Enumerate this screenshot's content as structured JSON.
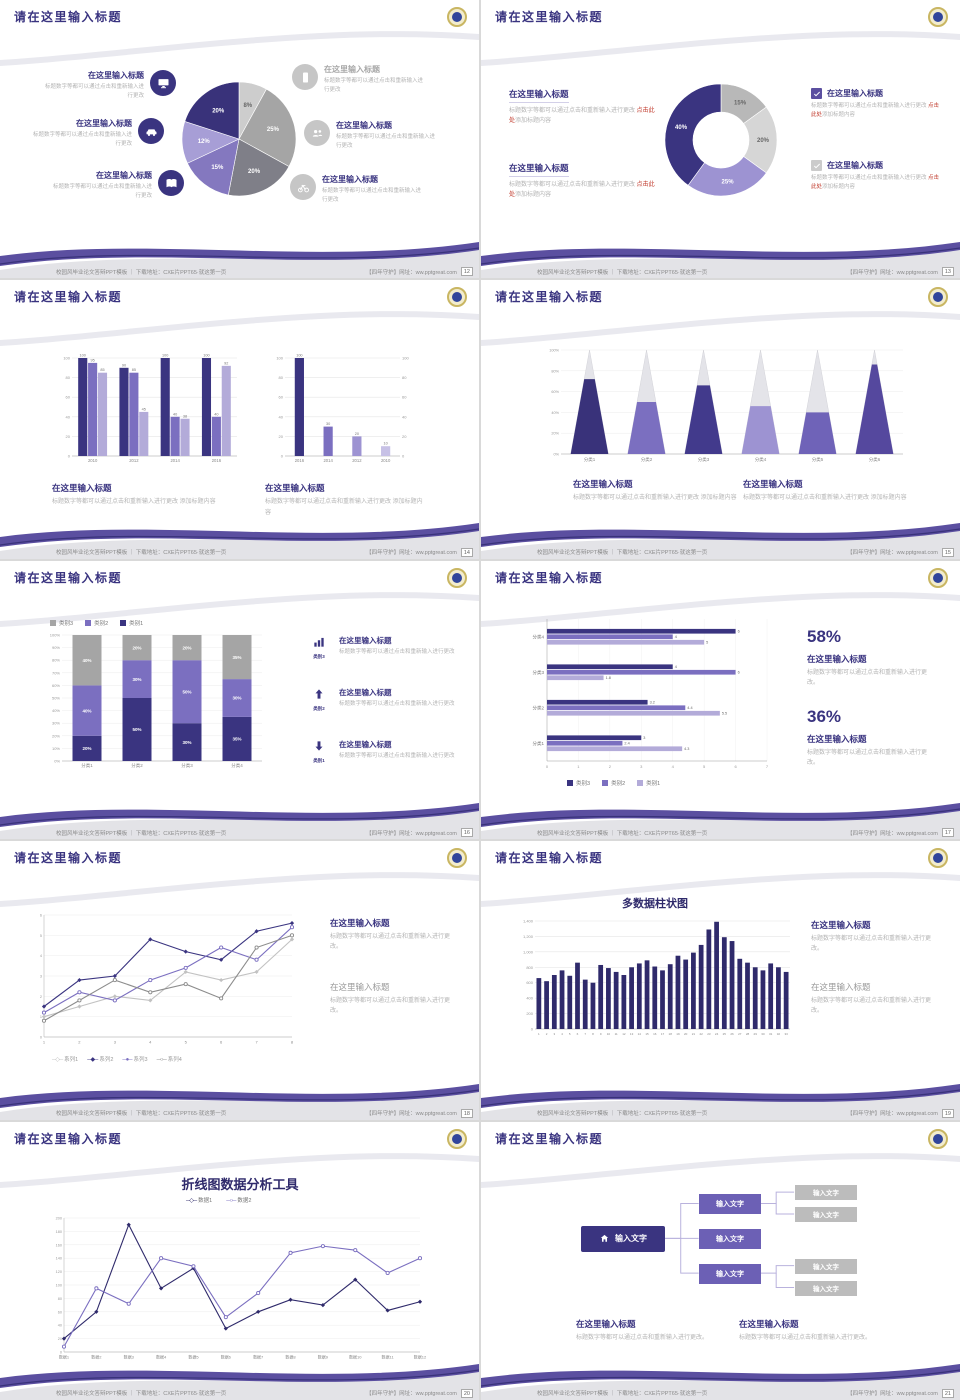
{
  "strings": {
    "slide_title": "请在这里输入标题",
    "block_title": "在这里输入标题",
    "body": "标题数字等都可以通过点击和重新输入进行更改",
    "body_dot": "标题数字等都可以通过点击和重新输入进行更改。",
    "body_long": "标题数字等都可以通过点击和重新输入进行更改 ",
    "red": "点击此处",
    "tail": "添加标题内容"
  },
  "footer": {
    "left": "校园风毕业论文答辩PPT模板 ｜ 下载地址：CXE片PPT65·就这第一页",
    "right": "【四年守护】网址：ww.pptgreat.com"
  },
  "colors": {
    "navy": "#3a3480",
    "purple": "#7b6fc0",
    "lilac": "#9d93d2",
    "gray": "#a5a5a5",
    "red": "#c0392b"
  },
  "slides": {
    "s1": {
      "page": "12",
      "left_icons": [
        "monitor-icon",
        "car-icon",
        "book-icon"
      ],
      "right_icons": [
        "mobile-icon",
        "people-icon",
        "bike-icon"
      ],
      "chart": {
        "type": "pie",
        "values": [
          8,
          25,
          20,
          15,
          12,
          20
        ],
        "labels": [
          "8%",
          "25%",
          "20%",
          "15%",
          "12%",
          "20%"
        ],
        "colors": [
          "#cdcdcd",
          "#a5a5a5",
          "#7f7f88",
          "#8478bf",
          "#a79ed6",
          "#39327a"
        ]
      }
    },
    "s2": {
      "page": "13",
      "chart": {
        "type": "pie",
        "inner": 0.5,
        "values": [
          15,
          20,
          25,
          40
        ],
        "labels": [
          "15%",
          "20%",
          "25%",
          "40%"
        ],
        "colors": [
          "#b8b8b8",
          "#d6d6d6",
          "#9d93d2",
          "#3a3480"
        ]
      }
    },
    "s3": {
      "page": "14",
      "chart1": {
        "type": "bar",
        "categories": [
          "2010",
          "2012",
          "2014",
          "2016"
        ],
        "series": [
          {
            "name": "系列1",
            "color": "#3a3480",
            "values": [
              100,
              90,
              100,
              100
            ]
          },
          {
            "name": "系列2",
            "color": "#7b6fc0",
            "values": [
              95,
              85,
              40,
              40
            ]
          },
          {
            "name": "系列3",
            "color": "#b3abd9",
            "values": [
              85,
              45,
              38,
              92
            ]
          }
        ],
        "ymax": 100,
        "ystep": 20,
        "value_labels": true
      },
      "chart2": {
        "type": "bar",
        "categories": [
          "2016",
          "2014",
          "2012",
          "2010"
        ],
        "series": [
          {
            "name": "系列1",
            "color": "#3a3480",
            "per_bar_colors": [
              "#3a3480",
              "#7b6fc0",
              "#9d93d2",
              "#c7c1e6"
            ],
            "values": [
              100,
              30,
              20,
              10
            ]
          }
        ],
        "ymax": 100,
        "ystep": 20,
        "value_labels": true,
        "axis_right": true
      }
    },
    "s4": {
      "page": "15",
      "chart": {
        "type": "cone",
        "categories": [
          "分类1",
          "分类2",
          "分类3",
          "分类4",
          "分类5",
          "分类6"
        ],
        "fractions": [
          0.72,
          0.5,
          0.66,
          0.46,
          0.4,
          0.86
        ],
        "colors": [
          "#39327a",
          "#7b6fc0",
          "#423a8c",
          "#9d93d2",
          "#6f63b8",
          "#55489e"
        ],
        "ymax": 100,
        "ystep": 20
      }
    },
    "s5": {
      "page": "16",
      "rows": [
        {
          "label": "类别3"
        },
        {
          "label": "类别2"
        },
        {
          "label": "类别1"
        }
      ],
      "chart": {
        "type": "stacked",
        "categories": [
          "分类1",
          "分类2",
          "分类3",
          "分类4"
        ],
        "series": [
          {
            "name": "类别1",
            "color": "#3a3480",
            "values": [
              20,
              50,
              30,
              35
            ]
          },
          {
            "name": "类别2",
            "color": "#7b6fc0",
            "values": [
              40,
              30,
              50,
              30
            ]
          },
          {
            "name": "类别3",
            "color": "#a5a5a5",
            "values": [
              40,
              20,
              20,
              35
            ]
          }
        ],
        "ymax": 100,
        "ystep": 10
      }
    },
    "s6": {
      "page": "17",
      "pct1": "58%",
      "pct2": "36%",
      "chart": {
        "type": "hbar",
        "categories": [
          "分类4",
          "分类3",
          "分类2",
          "分类1"
        ],
        "series": [
          {
            "name": "类别3",
            "color": "#3a3480",
            "values": [
              6,
              4,
              3.2,
              3
            ]
          },
          {
            "name": "类别2",
            "color": "#7b6fc0",
            "values": [
              4,
              6,
              4.4,
              2.4
            ]
          },
          {
            "name": "类别1",
            "color": "#b3abd9",
            "values": [
              5,
              1.8,
              5.5,
              4.3
            ]
          }
        ],
        "xmax": 7,
        "xstep": 1,
        "value_labels": true
      }
    },
    "s7": {
      "page": "18",
      "chart": {
        "type": "line",
        "x": [
          "1",
          "2",
          "3",
          "4",
          "5",
          "6",
          "7",
          "8"
        ],
        "ymax": 6,
        "ystep": 1,
        "series": [
          {
            "name": "系列1",
            "color": "#c2c2c2",
            "marker": "diamond",
            "glyph": "─◇─",
            "values": [
              1,
              1.5,
              2,
              1.8,
              3.2,
              2.8,
              3.2,
              4.8
            ]
          },
          {
            "name": "系列2",
            "color": "#3a3480",
            "marker": "diamond",
            "glyph": "─◆─",
            "values": [
              1.5,
              2.8,
              3,
              4.8,
              4.2,
              3.8,
              5.2,
              5.6
            ]
          },
          {
            "name": "系列3",
            "color": "#7b6fc0",
            "marker": "circle",
            "glyph": "─●─",
            "values": [
              1.2,
              2.2,
              1.8,
              2.8,
              3.4,
              4.4,
              3.8,
              5.4
            ]
          },
          {
            "name": "系列4",
            "color": "#8c8c8c",
            "marker": "circle",
            "glyph": "─○─",
            "values": [
              0.8,
              1.8,
              2.8,
              2.2,
              2.6,
              1.9,
              4.4,
              5
            ]
          }
        ]
      }
    },
    "s8": {
      "page": "19",
      "chart_title": "多数据柱状图",
      "chart": {
        "type": "bar",
        "categories": [
          "1",
          "2",
          "3",
          "4",
          "5",
          "6",
          "7",
          "8",
          "9",
          "10",
          "11",
          "12",
          "13",
          "14",
          "15",
          "16",
          "17",
          "18",
          "19",
          "20",
          "21",
          "22",
          "23",
          "24",
          "25",
          "26",
          "27",
          "28",
          "29",
          "30",
          "31",
          "32",
          "33"
        ],
        "series": [
          {
            "name": "数据",
            "color": "#2f2a6b",
            "values": [
              660,
              620,
              700,
              760,
              690,
              860,
              640,
              600,
              830,
              790,
              740,
              700,
              800,
              850,
              890,
              810,
              760,
              840,
              950,
              900,
              990,
              1090,
              1290,
              1390,
              1190,
              1140,
              910,
              860,
              800,
              760,
              850,
              800,
              740
            ]
          }
        ],
        "ymax": 1400,
        "ystep": 200,
        "value_labels": false,
        "xfs": 3
      }
    },
    "s9": {
      "page": "20",
      "chart_title": "折线图数据分析工具",
      "chart": {
        "type": "line",
        "x": [
          "数据1",
          "数据2",
          "数据3",
          "数据4",
          "数据5",
          "数据6",
          "数据7",
          "数据8",
          "数据9",
          "数据10",
          "数据11",
          "数据12"
        ],
        "ymax": 200,
        "ystep": 20,
        "series": [
          {
            "name": "数据1",
            "color": "#2f2a6b",
            "marker": "diamond",
            "glyph": "─◇─",
            "values": [
              20,
              60,
              190,
              95,
              125,
              35,
              60,
              78,
              70,
              108,
              62,
              75
            ]
          },
          {
            "name": "数据2",
            "color": "#7b6fc0",
            "marker": "circle",
            "glyph": "─○─",
            "values": [
              8,
              95,
              72,
              140,
              128,
              52,
              88,
              148,
              158,
              152,
              118,
              140
            ]
          }
        ]
      }
    },
    "s10": {
      "page": "21",
      "node_text": "输入文字"
    }
  }
}
